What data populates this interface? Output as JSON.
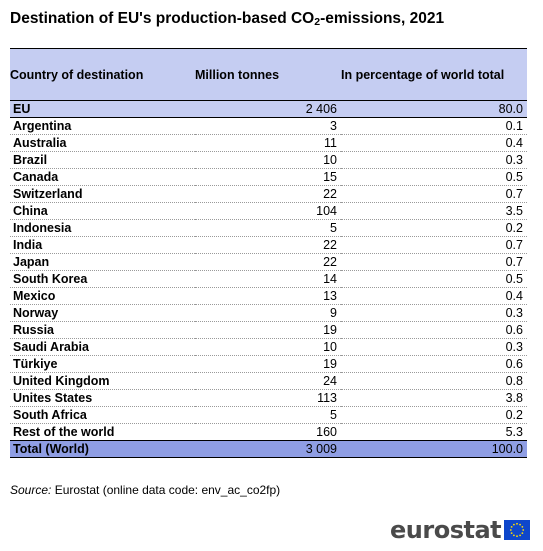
{
  "title": {
    "prefix": "Destination of EU's production-based CO",
    "subscript": "2",
    "suffix": "-emissions, 2021"
  },
  "table": {
    "headers": [
      "Country of destination",
      "Million tonnes",
      "In percentage of world total"
    ],
    "eu_row": {
      "country": "EU",
      "million_tonnes": "2 406",
      "percent": "80.0"
    },
    "rows": [
      {
        "country": "Argentina",
        "million_tonnes": "3",
        "percent": "0.1"
      },
      {
        "country": "Australia",
        "million_tonnes": "11",
        "percent": "0.4"
      },
      {
        "country": "Brazil",
        "million_tonnes": "10",
        "percent": "0.3"
      },
      {
        "country": "Canada",
        "million_tonnes": "15",
        "percent": "0.5"
      },
      {
        "country": "Switzerland",
        "million_tonnes": "22",
        "percent": "0.7"
      },
      {
        "country": "China",
        "million_tonnes": "104",
        "percent": "3.5"
      },
      {
        "country": "Indonesia",
        "million_tonnes": "5",
        "percent": "0.2"
      },
      {
        "country": "India",
        "million_tonnes": "22",
        "percent": "0.7"
      },
      {
        "country": "Japan",
        "million_tonnes": "22",
        "percent": "0.7"
      },
      {
        "country": "South Korea",
        "million_tonnes": "14",
        "percent": "0.5"
      },
      {
        "country": "Mexico",
        "million_tonnes": "13",
        "percent": "0.4"
      },
      {
        "country": "Norway",
        "million_tonnes": "9",
        "percent": "0.3"
      },
      {
        "country": "Russia",
        "million_tonnes": "19",
        "percent": "0.6"
      },
      {
        "country": "Saudi Arabia",
        "million_tonnes": "10",
        "percent": "0.3"
      },
      {
        "country": "Türkiye",
        "million_tonnes": "19",
        "percent": "0.6"
      },
      {
        "country": "United Kingdom",
        "million_tonnes": "24",
        "percent": "0.8"
      },
      {
        "country": "Unites States",
        "million_tonnes": "113",
        "percent": "3.8"
      },
      {
        "country": "South Africa",
        "million_tonnes": "5",
        "percent": "0.2"
      },
      {
        "country": "Rest of the world",
        "million_tonnes": "160",
        "percent": "5.3"
      }
    ],
    "total_row": {
      "country": "Total (World)",
      "million_tonnes": "3 009",
      "percent": "100.0"
    }
  },
  "source": {
    "label": "Source:",
    "text": " Eurostat (online data code: env_ac_co2fp)"
  },
  "logo": {
    "text": "eurostat",
    "icon": "eu-flag-icon",
    "flag_color": "#0e47cb",
    "star_color": "#ffdd00"
  },
  "colors": {
    "header_bg": "#c5cdf2",
    "eu_row_bg": "#c5cdf2",
    "total_row_bg": "#8f9ee4"
  }
}
